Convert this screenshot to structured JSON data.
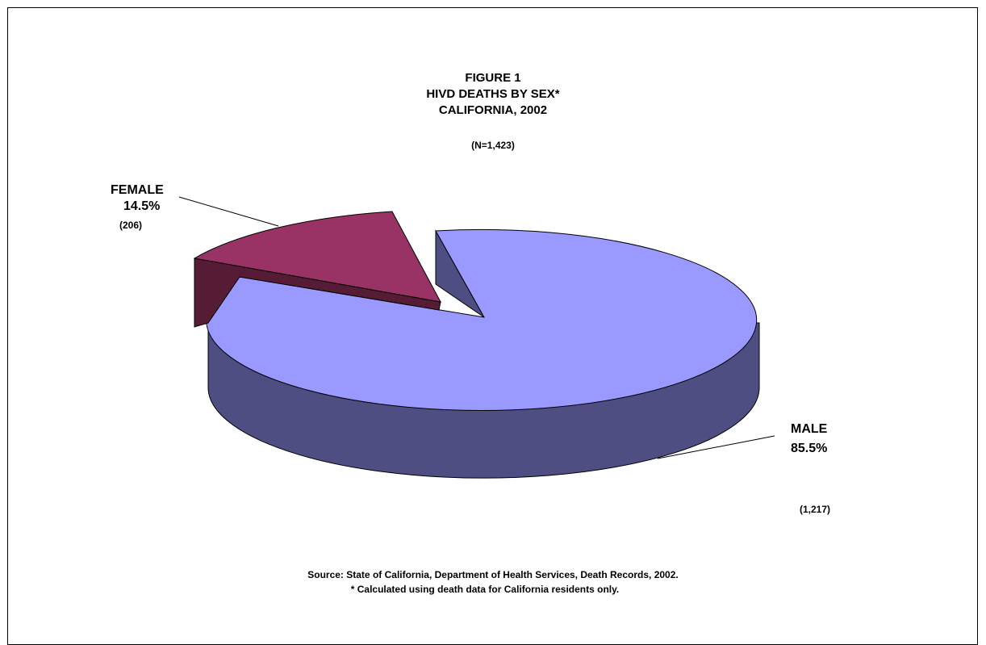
{
  "chart_data": {
    "type": "pie",
    "title_lines": [
      "FIGURE 1",
      "HIVD DEATHS BY SEX*",
      "CALIFORNIA, 2002"
    ],
    "total_label": "(N=1,423)",
    "slices": [
      {
        "name": "MALE",
        "percent_label": "85.5%",
        "count_label": "(1,217)",
        "value": 1217,
        "color": "#9999ff",
        "side_color": "#4e4e82"
      },
      {
        "name": "FEMALE",
        "percent_label": "14.5%",
        "count_label": "(206)",
        "value": 206,
        "color": "#993366",
        "side_color": "#561c36"
      }
    ],
    "exploded_slice": "FEMALE",
    "style": "3d"
  },
  "footnotes": {
    "source": "Source:  State of California, Department of Health Services, Death Records, 2002.",
    "note": "*  Calculated using death data for California residents only."
  }
}
